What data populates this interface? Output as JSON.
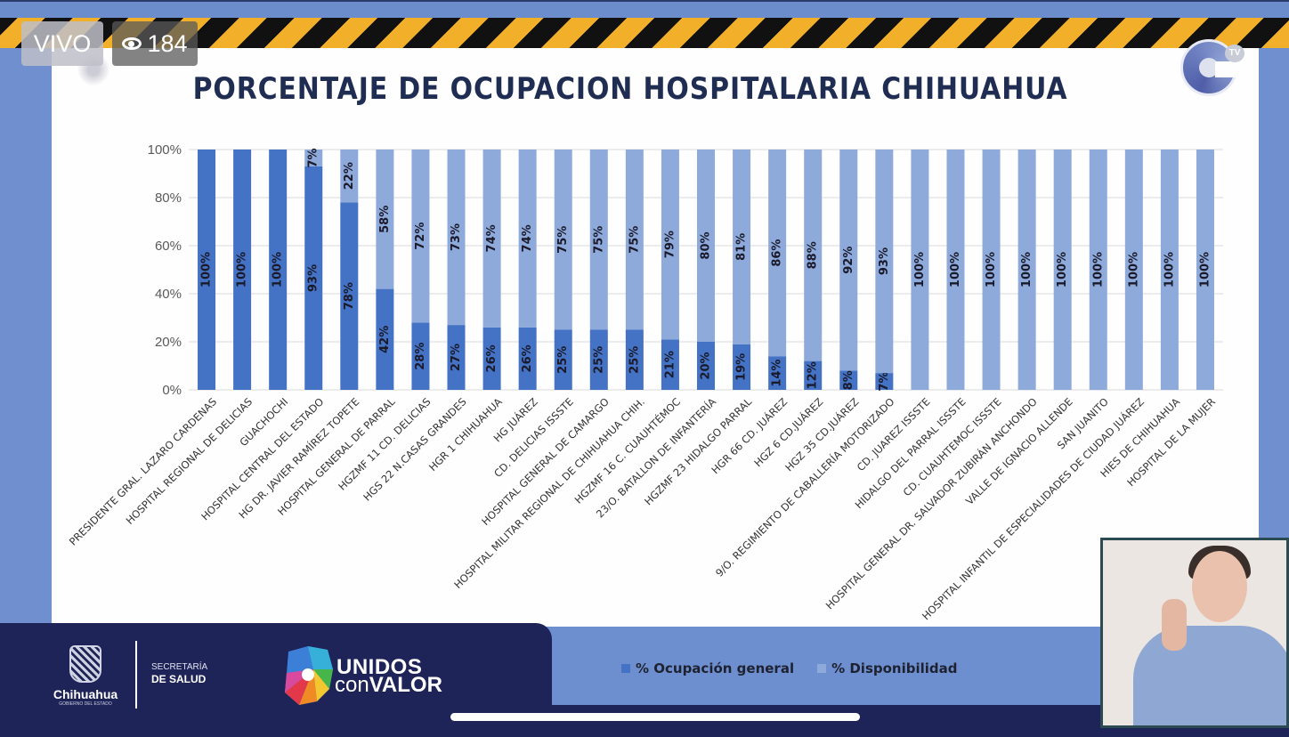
{
  "stream": {
    "live_label": "VIVO",
    "viewer_icon": "eye-icon",
    "viewer_count": "184",
    "channel_logo_text": "TV"
  },
  "footer": {
    "state_name": "Chihuahua",
    "state_subtitle": "GOBIERNO DEL ESTADO",
    "dept_line1": "SECRETARÍA",
    "dept_line2": "DE SALUD",
    "campaign_line1": "UNIDOS",
    "campaign_line2a": "con",
    "campaign_line2b": "VALOR"
  },
  "colors": {
    "ocupacion": "#4472c4",
    "disponibilidad": "#8eaadb",
    "title": "#1f2d52"
  },
  "chart_data": {
    "type": "bar",
    "stacked": true,
    "title": "PORCENTAJE DE OCUPACION HOSPITALARIA CHIHUAHUA",
    "xlabel": "",
    "ylabel": "",
    "ylim": [
      0,
      100
    ],
    "yticks": [
      "0%",
      "20%",
      "40%",
      "60%",
      "80%",
      "100%"
    ],
    "grid": true,
    "legend_position": "bottom",
    "categories": [
      "PRESIDENTE GRAL. LAZARO CARDENAS",
      "HOSPITAL REGIONAL DE DELICIAS",
      "GUACHOCHI",
      "HOSPITAL CENTRAL DEL ESTADO",
      "HG DR. JAVIER RAMÍREZ TOPETE",
      "HOSPITAL GENERAL DE PARRAL",
      "HGZMF 11 CD. DELICIAS",
      "HGS 22 N.CASAS GRANDES",
      "HGR 1 CHIHUAHUA",
      "HG  JUÁREZ",
      "CD. DELICIAS ISSSTE",
      "HOSPITAL GENERAL DE CAMARGO",
      "HOSPITAL MILITAR REGIONAL DE CHIHUAHUA CHIH.",
      "HGZMF 16 C. CUAUHTÉMOC",
      "23/O. BATALLON DE INFANTERÍA",
      "HGZMF 23 HIDALGO PARRAL",
      "HGR 66 CD. JUÁREZ",
      "HGZ 6 CD.JUÁREZ",
      "HGZ 35 CD.JUÁREZ",
      "9/O. REGIMIENTO DE CABALLERÍA MOTORIZADO",
      "CD. JUAREZ ISSSTE",
      "HIDALGO DEL PARRAL ISSSTE",
      "CD. CUAUHTEMOC ISSSTE",
      "HOSPITAL GENERAL DR. SALVADOR ZUBIRÁN ANCHONDO",
      "VALLE DE IGNACIO ALLENDE",
      "SAN JUANITO",
      "HOSPITAL INFANTIL DE ESPECIALIDADES DE CIUDAD JUÁREZ",
      "HIES DE CHIHUAHUA",
      "HOSPITAL DE LA MUJER"
    ],
    "series": [
      {
        "name": "% Ocupación general",
        "values": [
          100,
          100,
          100,
          93,
          78,
          42,
          28,
          27,
          26,
          26,
          25,
          25,
          25,
          21,
          20,
          19,
          14,
          12,
          8,
          7,
          0,
          0,
          0,
          0,
          0,
          0,
          0,
          0,
          0
        ],
        "labels": [
          "100%",
          "100%",
          "100%",
          "93%",
          "78%",
          "42%",
          "28%",
          "27%",
          "26%",
          "26%",
          "25%",
          "25%",
          "25%",
          "21%",
          "20%",
          "19%",
          "14%",
          "12%",
          "8%",
          "7%",
          "",
          "",
          "",
          "",
          "",
          "",
          "",
          "",
          ""
        ]
      },
      {
        "name": "% Disponibilidad",
        "values": [
          0,
          0,
          0,
          7,
          22,
          58,
          72,
          73,
          74,
          74,
          75,
          75,
          75,
          79,
          80,
          81,
          86,
          88,
          92,
          93,
          100,
          100,
          100,
          100,
          100,
          100,
          100,
          100,
          100
        ],
        "labels": [
          "",
          "",
          "",
          "7%",
          "22%",
          "58%",
          "72%",
          "73%",
          "74%",
          "74%",
          "75%",
          "75%",
          "75%",
          "79%",
          "80%",
          "81%",
          "86%",
          "88%",
          "92%",
          "93%",
          "100%",
          "100%",
          "100%",
          "100%",
          "100%",
          "100%",
          "100%",
          "100%",
          "100%"
        ]
      }
    ]
  }
}
